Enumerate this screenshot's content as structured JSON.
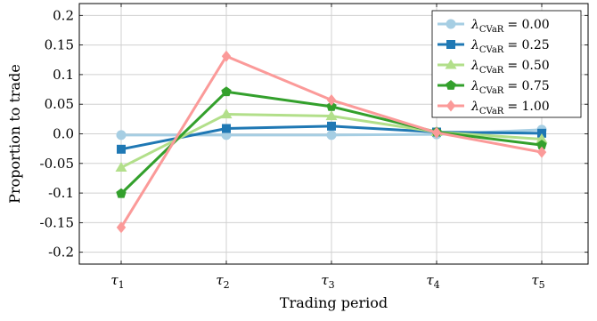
{
  "chart_data": {
    "type": "line",
    "xlabel": "Trading period",
    "ylabel": "Proportion to trade",
    "x_tick_labels": [
      {
        "base": "τ",
        "sub": "1"
      },
      {
        "base": "τ",
        "sub": "2"
      },
      {
        "base": "τ",
        "sub": "3"
      },
      {
        "base": "τ",
        "sub": "4"
      },
      {
        "base": "τ",
        "sub": "5"
      }
    ],
    "ylim": [
      -0.22,
      0.22
    ],
    "y_ticks": [
      0.2,
      0.15,
      0.1,
      0.05,
      0.0,
      -0.05,
      -0.1,
      -0.15,
      -0.2
    ],
    "y_tick_labels": [
      "0.2",
      "0.15",
      "0.1",
      "0.05",
      "0.0",
      "-0.05",
      "-0.1",
      "-0.15",
      "-0.2"
    ],
    "grid": true,
    "legend_position": "top-right",
    "series": [
      {
        "lambda_symbol": "λ",
        "lambda_sub": "CVaR",
        "lambda_value": "= 0.00",
        "color": "#a6cee3",
        "marker": "circle",
        "values": [
          -0.002,
          -0.002,
          -0.002,
          -0.001,
          0.007
        ]
      },
      {
        "lambda_symbol": "λ",
        "lambda_sub": "CVaR",
        "lambda_value": "= 0.25",
        "color": "#1f78b4",
        "marker": "square",
        "values": [
          -0.026,
          0.009,
          0.013,
          0.003,
          0.001
        ]
      },
      {
        "lambda_symbol": "λ",
        "lambda_sub": "CVaR",
        "lambda_value": "= 0.50",
        "color": "#b2df8a",
        "marker": "triangle",
        "values": [
          -0.057,
          0.033,
          0.03,
          0.003,
          -0.009
        ]
      },
      {
        "lambda_symbol": "λ",
        "lambda_sub": "CVaR",
        "lambda_value": "= 0.75",
        "color": "#33a02c",
        "marker": "pentagon",
        "values": [
          -0.101,
          0.071,
          0.046,
          0.003,
          -0.019
        ]
      },
      {
        "lambda_symbol": "λ",
        "lambda_sub": "CVaR",
        "lambda_value": "= 1.00",
        "color": "#fb9a99",
        "marker": "diamond",
        "values": [
          -0.158,
          0.131,
          0.057,
          0.002,
          -0.031
        ]
      }
    ]
  }
}
